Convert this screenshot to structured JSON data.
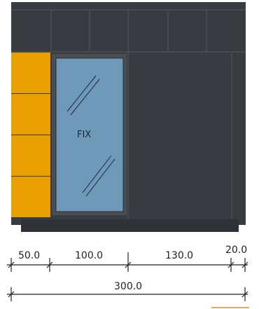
{
  "colors": {
    "wall": "#383b3f",
    "wall_line": "#555a60",
    "base": "#2e3135",
    "orange": "#e8a000",
    "glass": "#6f99b9",
    "frame": "#4a4e53",
    "dim_line": "#222222",
    "accent": "#f2a64a"
  },
  "glass_label": "FIX",
  "dimensions": {
    "segments": [
      "50.0",
      "100.0",
      "130.0",
      "20.0"
    ],
    "total": "300.0"
  }
}
